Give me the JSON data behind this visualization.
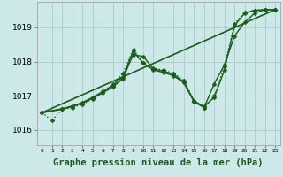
{
  "background_color": "#cce8e8",
  "grid_color": "#b0c8c8",
  "line_color": "#1a5c1a",
  "xlabel": "Graphe pression niveau de la mer (hPa)",
  "xlabel_fontsize": 7.5,
  "ylabel_ticks": [
    1016,
    1017,
    1018,
    1019
  ],
  "xticks": [
    0,
    1,
    2,
    3,
    4,
    5,
    6,
    7,
    8,
    9,
    10,
    11,
    12,
    13,
    14,
    15,
    16,
    17,
    18,
    19,
    20,
    21,
    22,
    23
  ],
  "xlim": [
    -0.5,
    23.5
  ],
  "ylim": [
    1015.55,
    1019.75
  ],
  "series": [
    {
      "x": [
        0,
        1,
        2,
        3,
        4,
        5,
        6,
        7,
        8,
        9,
        10,
        11,
        12,
        13,
        14,
        15,
        16,
        17,
        18,
        19,
        20,
        21,
        22,
        23
      ],
      "y": [
        1016.5,
        1016.28,
        1016.6,
        1016.65,
        1016.75,
        1016.9,
        1017.1,
        1017.35,
        1017.65,
        1018.35,
        1017.95,
        1017.8,
        1017.75,
        1017.65,
        1017.45,
        1016.85,
        1016.65,
        1017.0,
        1017.85,
        1019.1,
        1019.45,
        1019.5,
        1019.52,
        1019.52
      ],
      "style": ":",
      "marker": "D",
      "markersize": 2.5,
      "linewidth": 1.0
    },
    {
      "x": [
        0,
        2,
        3,
        4,
        5,
        6,
        7,
        8,
        9,
        10,
        11,
        12,
        13,
        14,
        15,
        16,
        17,
        18,
        19,
        20,
        21,
        22,
        23
      ],
      "y": [
        1016.5,
        1016.6,
        1016.68,
        1016.78,
        1016.92,
        1017.08,
        1017.25,
        1017.5,
        1018.2,
        1018.15,
        1017.78,
        1017.72,
        1017.62,
        1017.4,
        1016.85,
        1016.68,
        1016.95,
        1017.75,
        1019.05,
        1019.42,
        1019.5,
        1019.52,
        1019.52
      ],
      "style": "-",
      "marker": "D",
      "markersize": 2.5,
      "linewidth": 1.0
    },
    {
      "x": [
        0,
        23
      ],
      "y": [
        1016.5,
        1019.52
      ],
      "style": "-",
      "marker": null,
      "markersize": 0,
      "linewidth": 1.2
    },
    {
      "x": [
        0,
        2,
        3,
        4,
        5,
        6,
        7,
        8,
        9,
        10,
        11,
        12,
        13,
        14,
        15,
        16,
        17,
        18,
        19,
        20,
        21,
        22,
        23
      ],
      "y": [
        1016.5,
        1016.62,
        1016.7,
        1016.8,
        1016.95,
        1017.12,
        1017.3,
        1017.55,
        1018.3,
        1017.95,
        1017.75,
        1017.68,
        1017.58,
        1017.38,
        1016.82,
        1016.65,
        1017.35,
        1017.9,
        1018.75,
        1019.15,
        1019.42,
        1019.52,
        1019.52
      ],
      "style": "-",
      "marker": "D",
      "markersize": 2.5,
      "linewidth": 1.0
    }
  ]
}
